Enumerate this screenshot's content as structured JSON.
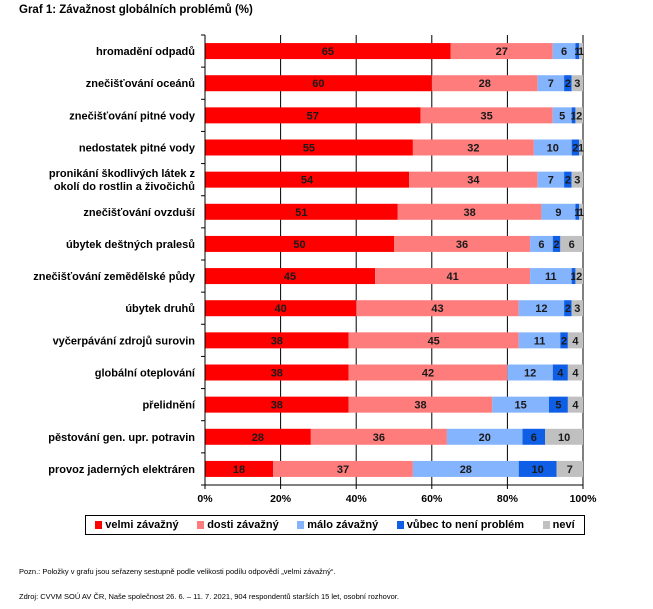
{
  "title": "Graf 1: Závažnost globálních problémů (%)",
  "chart_data": {
    "type": "bar",
    "orientation": "horizontal",
    "stacked": true,
    "title": "Graf 1: Závažnost globálních problémů (%)",
    "xlabel": "",
    "ylabel": "",
    "xlim": [
      0,
      100
    ],
    "x_ticks": [
      "0%",
      "20%",
      "40%",
      "60%",
      "80%",
      "100%"
    ],
    "grid": "vertical",
    "legend_position": "bottom",
    "categories": [
      [
        "hromadění odpadů"
      ],
      [
        "znečišťování oceánů"
      ],
      [
        "znečišťování pitné vody"
      ],
      [
        "nedostatek pitné vody"
      ],
      [
        "pronikání škodlivých látek z",
        "okolí do rostlin a živočichů"
      ],
      [
        "znečišťování ovzduší"
      ],
      [
        "úbytek deštných pralesů"
      ],
      [
        "znečišťování zemědělské půdy"
      ],
      [
        "úbytek druhů"
      ],
      [
        "vyčerpávání zdrojů surovin"
      ],
      [
        "globální oteplování"
      ],
      [
        "přelidnění"
      ],
      [
        "pěstování gen. upr. potravin"
      ],
      [
        "provoz jaderných elektráren"
      ]
    ],
    "series": [
      {
        "name": "velmi závažný",
        "color": "#ff0000",
        "values": [
          65,
          60,
          57,
          55,
          54,
          51,
          50,
          45,
          40,
          38,
          38,
          38,
          28,
          18
        ]
      },
      {
        "name": "dosti závažný",
        "color": "#ff7c7c",
        "values": [
          27,
          28,
          35,
          32,
          34,
          38,
          36,
          41,
          43,
          45,
          42,
          38,
          36,
          37
        ]
      },
      {
        "name": "málo závažný",
        "color": "#85b4ff",
        "values": [
          6,
          7,
          5,
          10,
          7,
          9,
          6,
          11,
          12,
          11,
          12,
          15,
          20,
          28
        ]
      },
      {
        "name": "vůbec to není problém",
        "color": "#0f5fe6",
        "values": [
          1,
          2,
          1,
          2,
          2,
          1,
          2,
          1,
          2,
          2,
          4,
          5,
          6,
          10
        ]
      },
      {
        "name": "neví",
        "color": "#c0c0c0",
        "values": [
          1,
          3,
          2,
          1,
          3,
          1,
          6,
          2,
          3,
          4,
          4,
          4,
          10,
          7
        ]
      }
    ]
  },
  "notes": {
    "pozn": "Pozn.: Položky v grafu jsou seřazeny sestupně podle velikosti podílu odpovědí „velmi závažný“.",
    "zdroj": "Zdroj: CVVM SOÚ AV ČR, Naše společnost 26. 6. – 11. 7. 2021, 904 respondentů starších 15 let, osobní rozhovor."
  }
}
